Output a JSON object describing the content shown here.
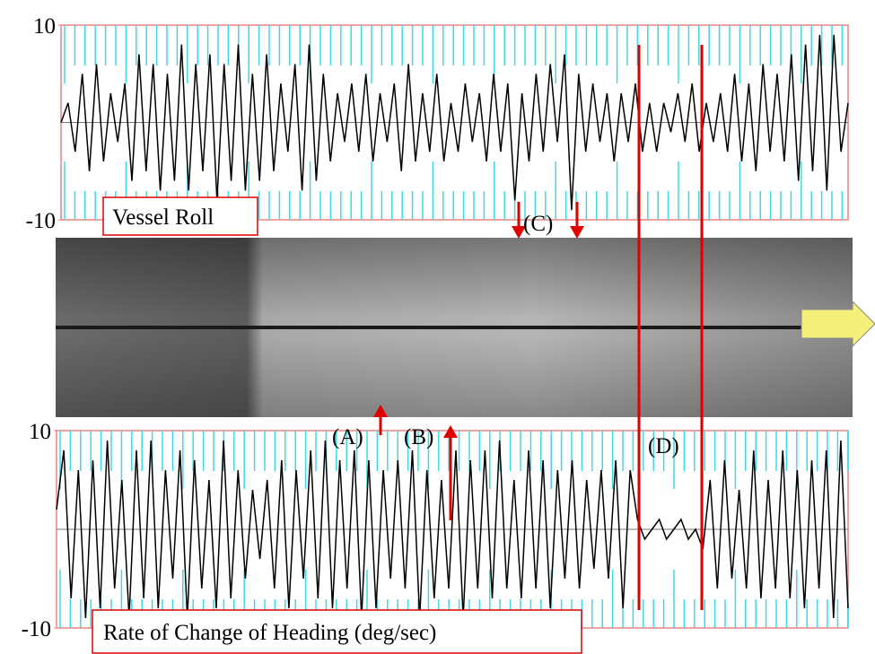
{
  "chart_data": [
    {
      "type": "line",
      "title": "Vessel Roll",
      "color": "#000000",
      "ylim": [
        -10,
        10
      ],
      "yticks": [
        -10,
        10
      ],
      "values": [
        0,
        2,
        -3,
        5,
        -5,
        6,
        -4,
        3,
        -2,
        4,
        -6,
        7,
        -5,
        6,
        -7,
        5,
        -6,
        8,
        -7,
        6,
        -5,
        7,
        -8,
        6,
        -6,
        8,
        -7,
        5,
        -6,
        7,
        -5,
        4,
        -3,
        6,
        -7,
        8,
        -6,
        5,
        -4,
        3,
        -2,
        4,
        -3,
        5,
        -4,
        3,
        -2,
        4,
        -5,
        6,
        -4,
        3,
        -3,
        5,
        -4,
        2,
        -3,
        4,
        -2,
        3,
        -4,
        5,
        -3,
        4,
        -8,
        3,
        -4,
        5,
        -3,
        6,
        -2,
        7,
        -9,
        5,
        -3,
        4,
        -2,
        3,
        -4,
        3,
        -2,
        4,
        -3,
        2,
        -3,
        2,
        -1,
        3,
        -2,
        4,
        -3,
        2,
        -2,
        3,
        -3,
        5,
        -4,
        4,
        -5,
        6,
        -3,
        5,
        -4,
        7,
        -6,
        8,
        -5,
        9,
        -7,
        9,
        -3,
        2
      ]
    },
    {
      "type": "line",
      "title": "Rate of Change of Heading (deg/sec)",
      "color": "#000000",
      "ylim": [
        -10,
        10
      ],
      "yticks": [
        -10,
        10
      ],
      "values": [
        2,
        8,
        -7,
        6,
        -9,
        7,
        -8,
        9,
        -6,
        5,
        -9,
        8,
        -7,
        9,
        -8,
        6,
        -5,
        8,
        -9,
        7,
        -6,
        5,
        -8,
        9,
        -7,
        6,
        -5,
        4,
        -3,
        5,
        -6,
        7,
        -8,
        6,
        -5,
        8,
        -7,
        9,
        -8,
        7,
        -6,
        8,
        -9,
        7,
        -8,
        6,
        -5,
        7,
        -6,
        8,
        -9,
        6,
        -7,
        5,
        -6,
        8,
        -9,
        7,
        -6,
        8,
        -7,
        9,
        -6,
        5,
        -7,
        8,
        -6,
        7,
        -8,
        6,
        -5,
        7,
        -6,
        5,
        -4,
        6,
        -5,
        7,
        -8,
        6,
        1,
        -1,
        0,
        1,
        -1,
        0,
        1,
        -1,
        0,
        -2,
        5,
        -6,
        7,
        -5,
        4,
        -6,
        8,
        -7,
        5,
        -6,
        8,
        -7,
        6,
        -8,
        7,
        -6,
        8,
        -9,
        9,
        -8
      ]
    }
  ],
  "annotations": [
    "(A)",
    "(B)",
    "(C)",
    "(D)"
  ]
}
